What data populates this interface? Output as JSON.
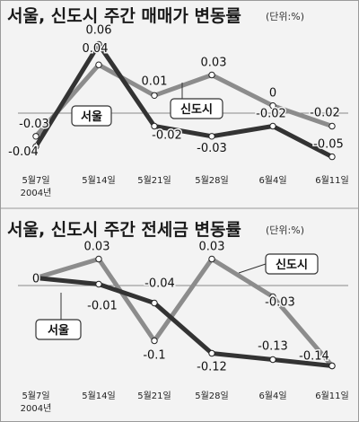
{
  "chart_data": [
    {
      "type": "line",
      "title": "서울, 신도시 주간 매매가 변동률",
      "unit": "(단위:%)",
      "x_ticks": [
        "5월7일",
        "5월14일",
        "5월21일",
        "5월28일",
        "6월4일",
        "6월11일"
      ],
      "x_year": "2004년",
      "series": [
        {
          "name": "서울",
          "values": [
            -0.04,
            0.06,
            -0.02,
            -0.03,
            -0.02,
            -0.05
          ],
          "labels": [
            "-0.04",
            "0.06",
            "-0.02",
            "-0.03",
            "-0.02",
            "-0.05"
          ]
        },
        {
          "name": "신도시",
          "values": [
            -0.03,
            0.04,
            0.01,
            0.03,
            0.0,
            -0.02
          ],
          "labels": [
            "-0.03",
            "0.04",
            "0.01",
            "0.03",
            "0",
            "-0.02"
          ]
        }
      ],
      "ylim": [
        -0.06,
        0.07
      ],
      "colors": {
        "서울": "#333333",
        "신도시": "#8c8c8c"
      }
    },
    {
      "type": "line",
      "title": "서울, 신도시 주간 전세금 변동률",
      "unit": "(단위:%)",
      "x_ticks": [
        "5월7일",
        "5월14일",
        "5월21일",
        "5월28일",
        "6월4일",
        "6월11일"
      ],
      "x_year": "2004년",
      "series": [
        {
          "name": "서울",
          "values": [
            0.0,
            -0.01,
            -0.04,
            -0.12,
            -0.13,
            -0.14
          ],
          "labels": [
            "0",
            "-0.01",
            "-0.04",
            "-0.12",
            "-0.13",
            ""
          ]
        },
        {
          "name": "신도시",
          "values": [
            0.0,
            0.03,
            -0.1,
            0.03,
            -0.03,
            -0.14
          ],
          "labels": [
            "",
            "0.03",
            "-0.1",
            "0.03",
            "-0.03",
            "-0.14"
          ]
        }
      ],
      "ylim": [
        -0.155,
        0.045
      ],
      "colors": {
        "서울": "#333333",
        "신도시": "#8c8c8c"
      }
    }
  ]
}
